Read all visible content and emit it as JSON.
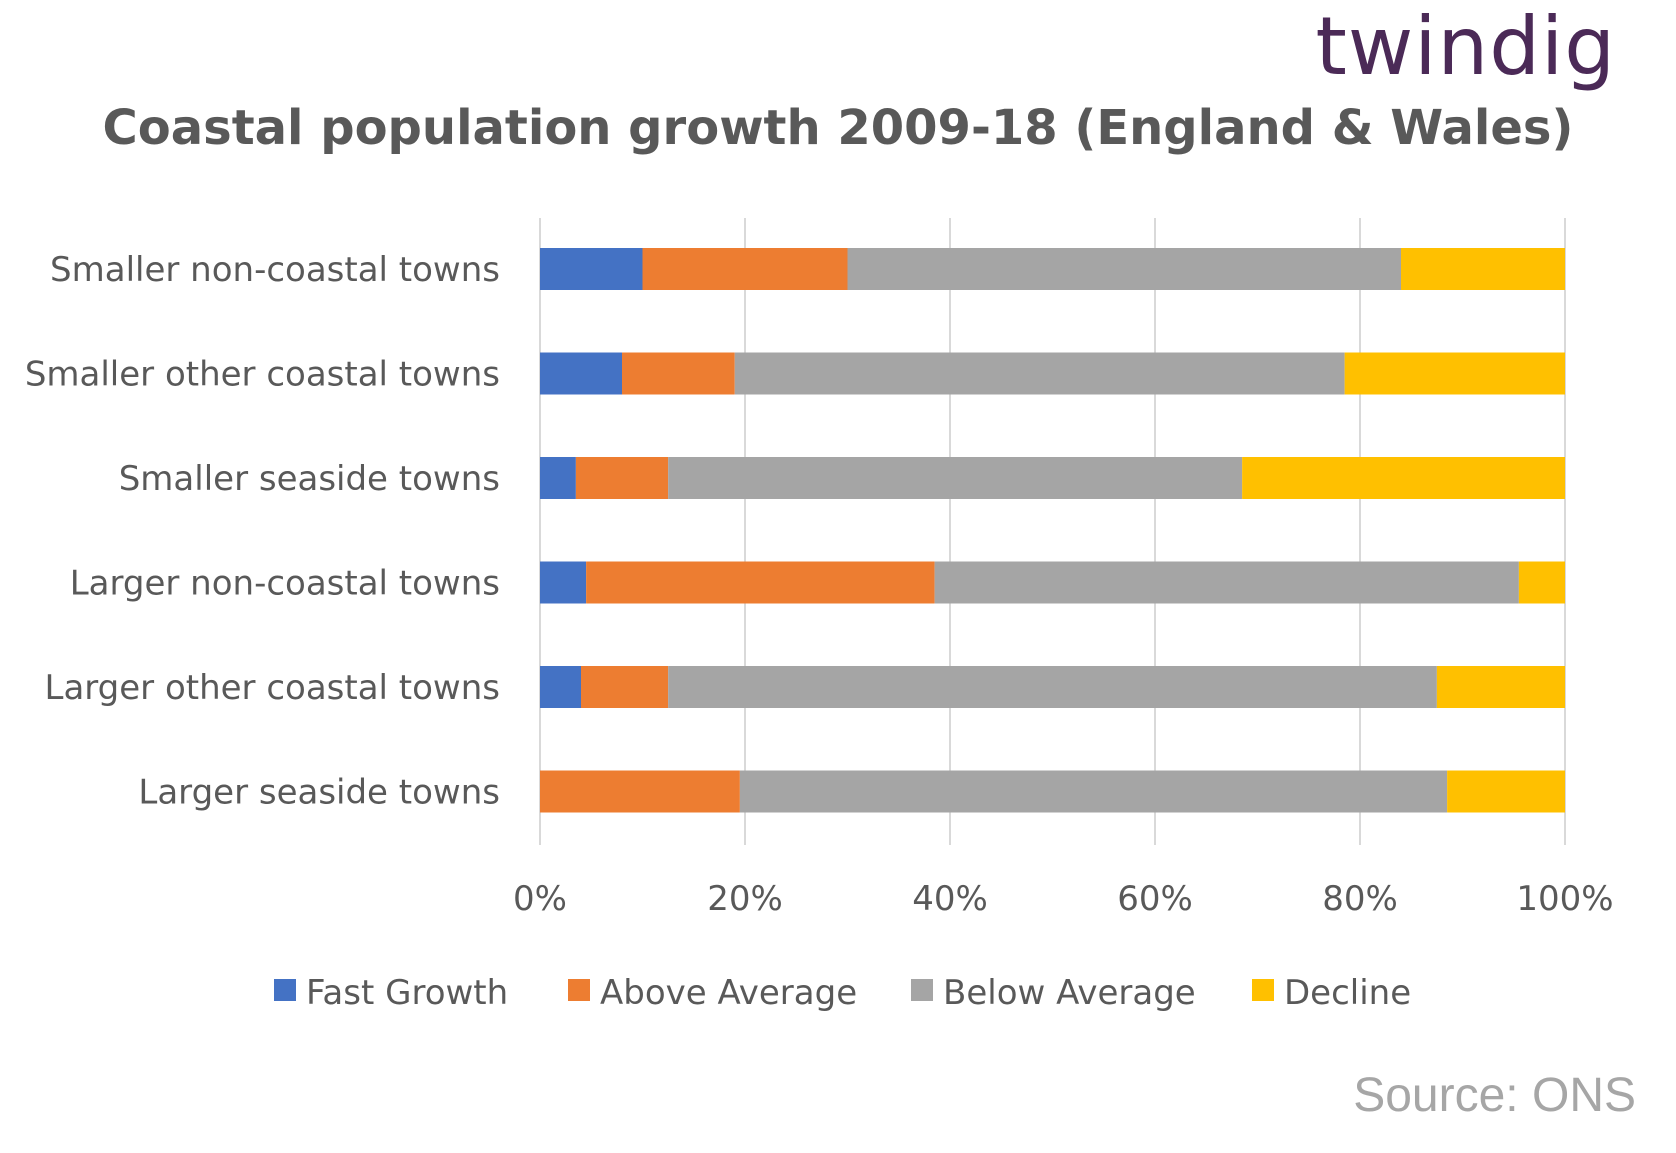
{
  "brand": {
    "logo_text": "twindig"
  },
  "source": "Source: ONS",
  "chart_data": {
    "type": "bar",
    "orientation": "horizontal",
    "stacked": "percent",
    "title": "Coastal population  growth 2009-18 (England & Wales)",
    "categories": [
      "Smaller non-coastal towns",
      "Smaller other coastal towns",
      "Smaller seaside towns",
      "Larger non-coastal towns",
      "Larger other coastal towns",
      "Larger seaside towns"
    ],
    "series": [
      {
        "name": "Fast Growth",
        "color": "#4472C4",
        "values": [
          10,
          8,
          3.5,
          4.5,
          4,
          0
        ]
      },
      {
        "name": "Above Average",
        "color": "#ED7D31",
        "values": [
          20,
          11,
          9,
          34,
          8.5,
          19.5
        ]
      },
      {
        "name": "Below Average",
        "color": "#A5A5A5",
        "values": [
          54,
          59.5,
          56,
          57,
          75,
          69
        ]
      },
      {
        "name": "Decline",
        "color": "#FFC000",
        "values": [
          16,
          21.5,
          31.5,
          4.5,
          12.5,
          11.5
        ]
      }
    ],
    "xlim": [
      0,
      100
    ],
    "xticks": [
      "0%",
      "20%",
      "40%",
      "60%",
      "80%",
      "100%"
    ],
    "grid": true,
    "legend": "bottom"
  }
}
